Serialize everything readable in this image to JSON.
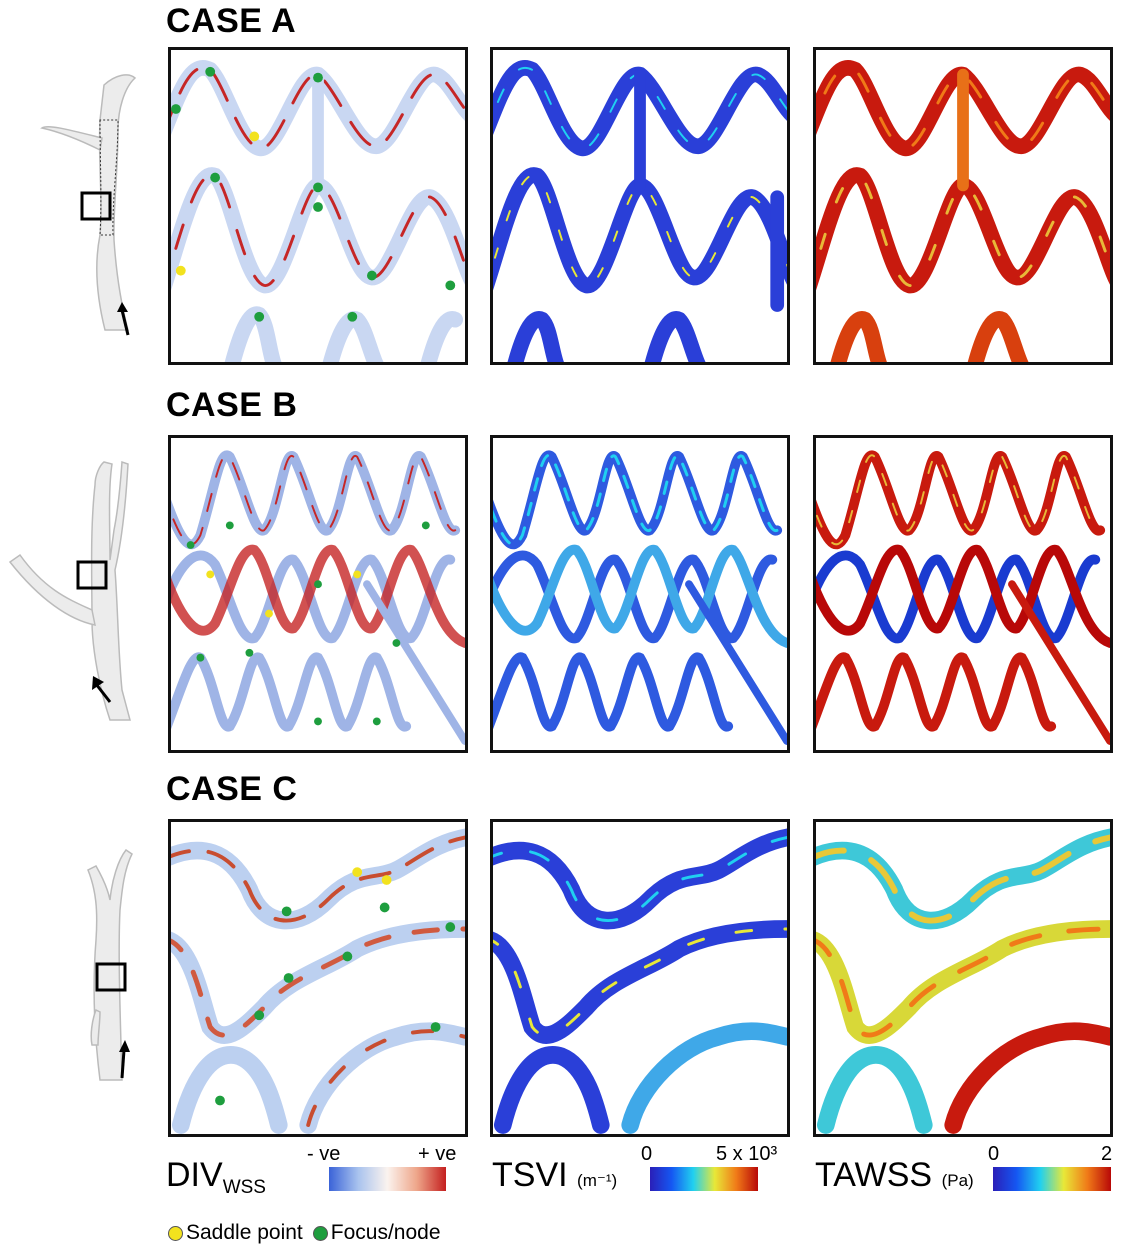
{
  "cases": [
    {
      "title": "CASE A"
    },
    {
      "title": "CASE B"
    },
    {
      "title": "CASE C"
    }
  ],
  "legend": {
    "divwss": {
      "main": "DIV",
      "sub": "WSS",
      "min": "- ve",
      "max": "+ ve",
      "colors": [
        "#3a63d8",
        "#a9c3ee",
        "#fbf3ee",
        "#eea68a",
        "#c41f1f"
      ]
    },
    "tsvi": {
      "label": "TSVI",
      "unit": "(m⁻¹)",
      "min": "0",
      "max": "5 x 10³",
      "colors": [
        "#2a1fb8",
        "#1557f2",
        "#20d0f0",
        "#e8e838",
        "#f07a18",
        "#b80808"
      ]
    },
    "tawss": {
      "label": "TAWSS",
      "unit": "(Pa)",
      "min": "0",
      "max": "2",
      "colors": [
        "#2a1fb8",
        "#1557f2",
        "#20d0f0",
        "#e8e838",
        "#f07a18",
        "#b80808"
      ]
    }
  },
  "markers": {
    "saddle": {
      "label": "Saddle point",
      "color": "#f2e21e"
    },
    "focus": {
      "label": "Focus/node",
      "color": "#1e9e3e"
    }
  }
}
